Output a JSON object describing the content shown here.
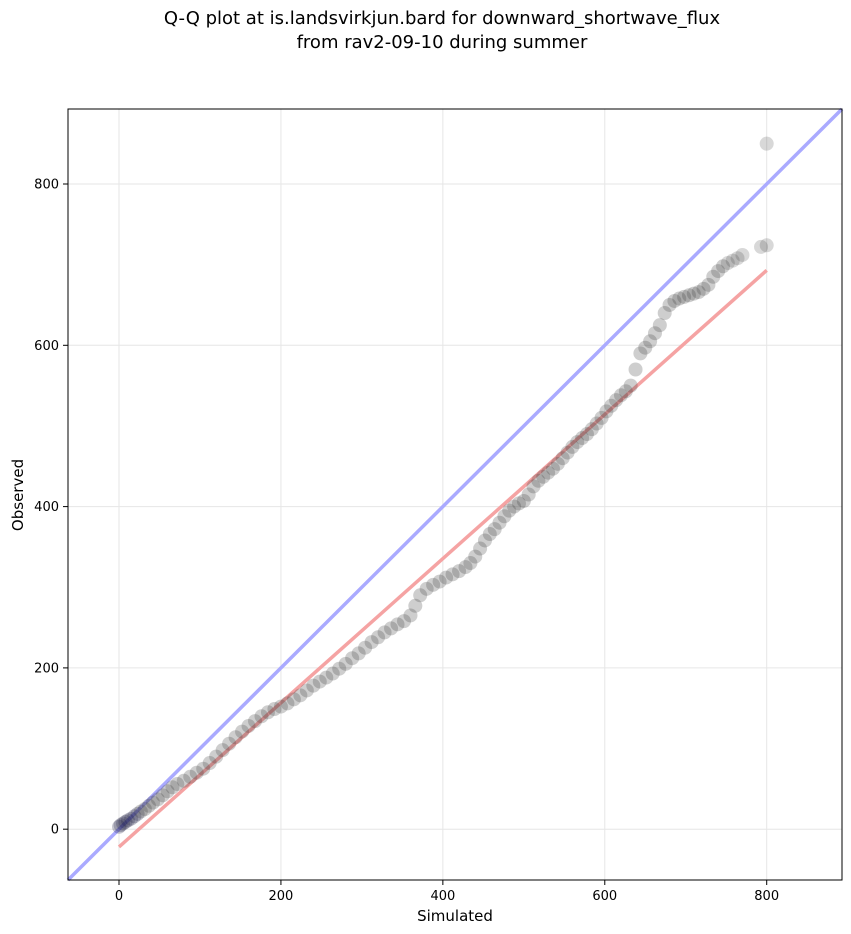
{
  "chart_data": {
    "type": "scatter",
    "title": [
      "Q-Q plot at is.landsvirkjun.bard for downward_shortwave_flux",
      "from rav2-09-10 during summer"
    ],
    "xlabel": "Simulated",
    "ylabel": "Observed",
    "xlim": [
      -63,
      893
    ],
    "ylim": [
      -63,
      893
    ],
    "xticks": [
      0,
      200,
      400,
      600,
      800
    ],
    "yticks": [
      0,
      200,
      400,
      600,
      800
    ],
    "grid": true,
    "reference_lines": [
      {
        "name": "one-to-one",
        "color": "#aaaaff",
        "x": [
          -63,
          893
        ],
        "y": [
          -63,
          893
        ]
      },
      {
        "name": "linear-fit",
        "color": "#f5a3a3",
        "x": [
          0,
          800
        ],
        "y": [
          -22,
          693
        ]
      }
    ],
    "series": [
      {
        "name": "quantiles",
        "color": "#3a3a3a",
        "points": [
          [
            0,
            3
          ],
          [
            2,
            5
          ],
          [
            5,
            7
          ],
          [
            8,
            9
          ],
          [
            11,
            11
          ],
          [
            15,
            13
          ],
          [
            19,
            16
          ],
          [
            23,
            19
          ],
          [
            27,
            22
          ],
          [
            32,
            25
          ],
          [
            37,
            29
          ],
          [
            42,
            33
          ],
          [
            48,
            37
          ],
          [
            54,
            42
          ],
          [
            60,
            47
          ],
          [
            66,
            52
          ],
          [
            72,
            56
          ],
          [
            80,
            60
          ],
          [
            88,
            65
          ],
          [
            96,
            70
          ],
          [
            104,
            75
          ],
          [
            112,
            82
          ],
          [
            120,
            90
          ],
          [
            128,
            98
          ],
          [
            136,
            106
          ],
          [
            144,
            114
          ],
          [
            152,
            121
          ],
          [
            160,
            128
          ],
          [
            168,
            134
          ],
          [
            176,
            140
          ],
          [
            184,
            145
          ],
          [
            192,
            149
          ],
          [
            200,
            152
          ],
          [
            208,
            156
          ],
          [
            216,
            161
          ],
          [
            224,
            166
          ],
          [
            232,
            172
          ],
          [
            240,
            178
          ],
          [
            248,
            183
          ],
          [
            256,
            188
          ],
          [
            264,
            193
          ],
          [
            272,
            199
          ],
          [
            280,
            205
          ],
          [
            288,
            212
          ],
          [
            296,
            218
          ],
          [
            304,
            225
          ],
          [
            312,
            232
          ],
          [
            320,
            238
          ],
          [
            328,
            244
          ],
          [
            336,
            249
          ],
          [
            344,
            254
          ],
          [
            352,
            258
          ],
          [
            360,
            265
          ],
          [
            366,
            277
          ],
          [
            372,
            290
          ],
          [
            380,
            298
          ],
          [
            388,
            303
          ],
          [
            396,
            307
          ],
          [
            404,
            312
          ],
          [
            412,
            316
          ],
          [
            420,
            320
          ],
          [
            428,
            325
          ],
          [
            434,
            330
          ],
          [
            440,
            338
          ],
          [
            446,
            348
          ],
          [
            452,
            358
          ],
          [
            458,
            366
          ],
          [
            464,
            372
          ],
          [
            470,
            380
          ],
          [
            476,
            388
          ],
          [
            482,
            395
          ],
          [
            488,
            400
          ],
          [
            494,
            404
          ],
          [
            500,
            407
          ],
          [
            506,
            415
          ],
          [
            512,
            425
          ],
          [
            518,
            432
          ],
          [
            524,
            437
          ],
          [
            530,
            442
          ],
          [
            536,
            447
          ],
          [
            542,
            453
          ],
          [
            548,
            460
          ],
          [
            554,
            467
          ],
          [
            560,
            474
          ],
          [
            566,
            480
          ],
          [
            572,
            485
          ],
          [
            578,
            490
          ],
          [
            584,
            496
          ],
          [
            590,
            503
          ],
          [
            596,
            510
          ],
          [
            602,
            518
          ],
          [
            608,
            525
          ],
          [
            614,
            532
          ],
          [
            620,
            538
          ],
          [
            626,
            543
          ],
          [
            632,
            550
          ],
          [
            638,
            570
          ],
          [
            644,
            590
          ],
          [
            650,
            597
          ],
          [
            656,
            605
          ],
          [
            662,
            615
          ],
          [
            668,
            625
          ],
          [
            674,
            640
          ],
          [
            680,
            650
          ],
          [
            686,
            655
          ],
          [
            692,
            658
          ],
          [
            698,
            660
          ],
          [
            704,
            662
          ],
          [
            710,
            664
          ],
          [
            716,
            666
          ],
          [
            722,
            670
          ],
          [
            728,
            675
          ],
          [
            734,
            685
          ],
          [
            740,
            692
          ],
          [
            746,
            698
          ],
          [
            752,
            702
          ],
          [
            758,
            705
          ],
          [
            764,
            708
          ],
          [
            770,
            712
          ],
          [
            793,
            722
          ],
          [
            800,
            724
          ],
          [
            800,
            850
          ]
        ]
      }
    ]
  }
}
